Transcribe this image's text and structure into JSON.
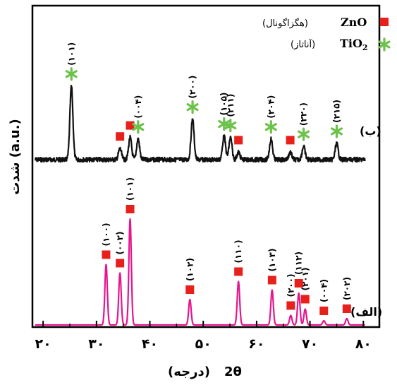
{
  "chart_data": {
    "type": "line",
    "xlabel_symbol": "2θ",
    "xlabel_unit": "(درجه)",
    "ylabel": "شدت (a.u.)",
    "xlim": [
      18,
      83
    ],
    "xticks": [
      20,
      30,
      40,
      50,
      60,
      70,
      80
    ],
    "xtick_labels": [
      "۲۰",
      "۳۰",
      "۴۰",
      "۵۰",
      "۶۰",
      "۷۰",
      "۸۰"
    ],
    "grid": false,
    "legend_position": "top-right",
    "legend": [
      {
        "marker": "square",
        "color": "#e8201c",
        "name": "ZnO",
        "note": "(هگزاگونال)"
      },
      {
        "marker": "star",
        "color": "#6cc24a",
        "name": "TiO",
        "subscript": "2",
        "note": "(آناتاز)"
      }
    ],
    "series": [
      {
        "name": "ب",
        "label": "(ب)",
        "color": "#111111",
        "peaks": [
          {
            "x": 25.3,
            "height": 100,
            "label": "(۱۰۱)",
            "marker": "star"
          },
          {
            "x": 34.4,
            "height": 15,
            "marker": "square"
          },
          {
            "x": 36.3,
            "height": 30,
            "marker": "square"
          },
          {
            "x": 37.8,
            "height": 28,
            "label": "(۰۰۴)",
            "marker": "star"
          },
          {
            "x": 48.0,
            "height": 55,
            "label": "(۲۰۰)",
            "marker": "star"
          },
          {
            "x": 53.9,
            "height": 32,
            "label": "(۱۰۵)",
            "marker": "star"
          },
          {
            "x": 55.1,
            "height": 30,
            "label": "(۲۱۱)",
            "marker": "star"
          },
          {
            "x": 56.6,
            "height": 10,
            "marker": "square"
          },
          {
            "x": 62.7,
            "height": 28,
            "label": "(۲۰۴)",
            "marker": "star"
          },
          {
            "x": 66.3,
            "height": 10,
            "marker": "square"
          },
          {
            "x": 68.8,
            "height": 18,
            "label": "(۲۲۰)",
            "marker": "star"
          },
          {
            "x": 75.0,
            "height": 22,
            "label": "(۲۱۵)",
            "marker": "star"
          }
        ]
      },
      {
        "name": "الف",
        "label": "(الف)",
        "color": "#e6168e",
        "peaks": [
          {
            "x": 31.8,
            "height": 57,
            "label": "(۱۰۰)",
            "marker": "square"
          },
          {
            "x": 34.4,
            "height": 49,
            "label": "(۰۰۲)",
            "marker": "square"
          },
          {
            "x": 36.3,
            "height": 100,
            "label": "(۱۰۱)",
            "marker": "square"
          },
          {
            "x": 47.5,
            "height": 24,
            "label": "(۱۰۲)",
            "marker": "square"
          },
          {
            "x": 56.6,
            "height": 41,
            "label": "(۱۱۰)",
            "marker": "square"
          },
          {
            "x": 62.9,
            "height": 33,
            "label": "(۱۰۳)",
            "marker": "square"
          },
          {
            "x": 66.4,
            "height": 9,
            "label": "(۲۰۰)",
            "marker": "square"
          },
          {
            "x": 67.9,
            "height": 30,
            "label": "(۱۱۲)",
            "marker": "square"
          },
          {
            "x": 69.1,
            "height": 15,
            "label": "(۲۰۱)",
            "marker": "square"
          },
          {
            "x": 72.6,
            "height": 4,
            "label": "(۰۰۴)",
            "marker": "square"
          },
          {
            "x": 76.9,
            "height": 6,
            "label": "(۲۰۲)",
            "marker": "square"
          }
        ]
      }
    ]
  }
}
